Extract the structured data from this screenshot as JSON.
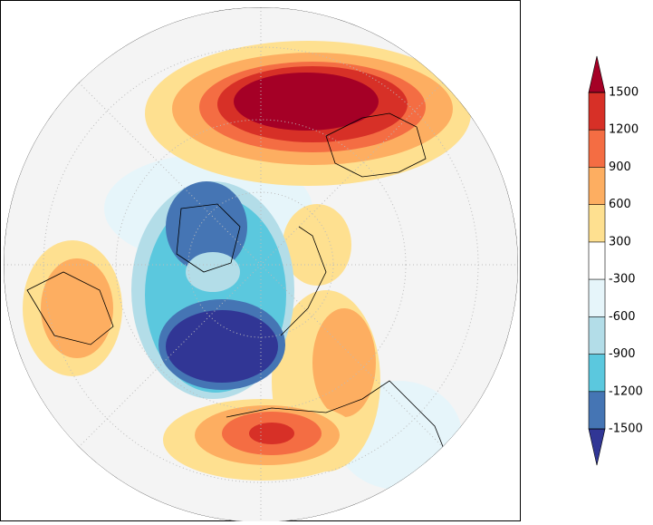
{
  "colorbar": {
    "levels": [
      -1500,
      -1200,
      -900,
      -600,
      -300,
      300,
      600,
      900,
      1200,
      1500
    ],
    "colors": [
      "#313695",
      "#4575b4",
      "#5bc8de",
      "#b3dde8",
      "#e6f5fa",
      "#ffffff",
      "#fee090",
      "#fdae61",
      "#f46d43",
      "#d73027",
      "#a50026"
    ]
  }
}
